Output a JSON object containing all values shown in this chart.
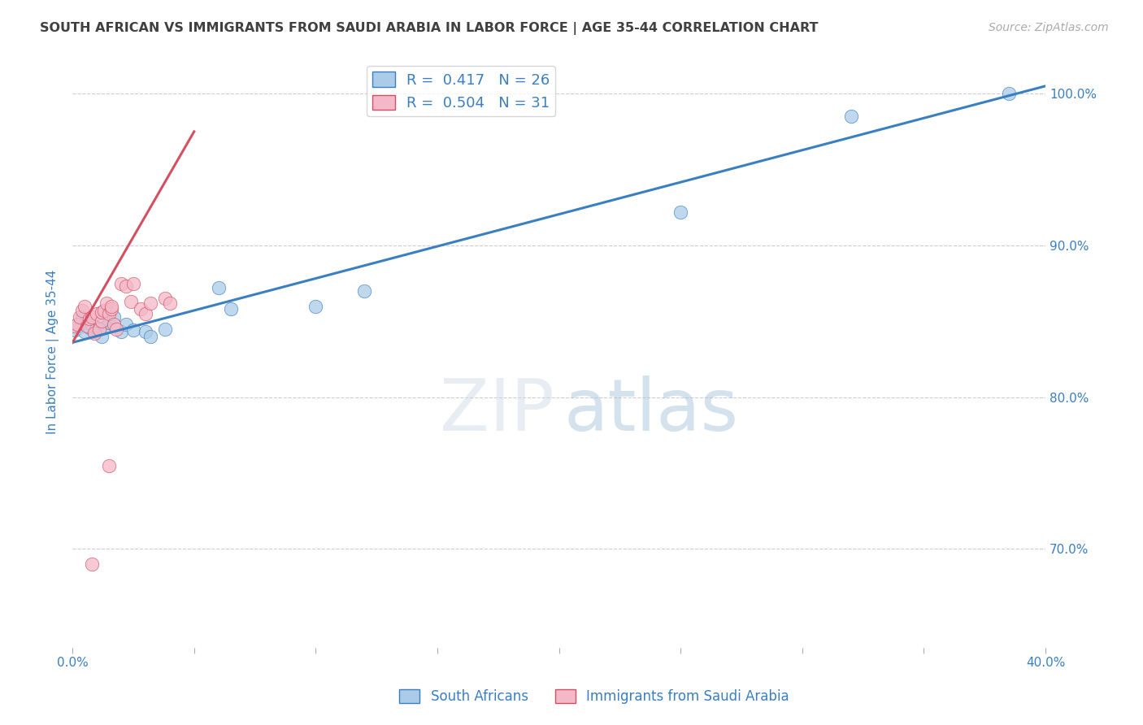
{
  "title": "SOUTH AFRICAN VS IMMIGRANTS FROM SAUDI ARABIA IN LABOR FORCE | AGE 35-44 CORRELATION CHART",
  "source": "Source: ZipAtlas.com",
  "ylabel": "In Labor Force | Age 35-44",
  "xlim": [
    0.0,
    0.4
  ],
  "ylim": [
    0.635,
    1.025
  ],
  "yticks": [
    0.7,
    0.8,
    0.9,
    1.0
  ],
  "xticks": [
    0.0,
    0.05,
    0.1,
    0.15,
    0.2,
    0.25,
    0.3,
    0.35,
    0.4
  ],
  "blue_label": "South Africans",
  "pink_label": "Immigrants from Saudi Arabia",
  "blue_R": 0.417,
  "blue_N": 26,
  "pink_R": 0.504,
  "pink_N": 31,
  "blue_color": "#aacce8",
  "pink_color": "#f4b8c8",
  "blue_line_color": "#3a7fc1",
  "pink_line_color": "#d45060",
  "title_color": "#404040",
  "label_color": "#3a7fc1",
  "blue_line_x0": 0.0,
  "blue_line_y0": 0.836,
  "blue_line_x1": 0.4,
  "blue_line_y1": 1.005,
  "pink_line_x0": 0.0,
  "pink_line_y0": 0.836,
  "pink_line_x1": 0.05,
  "pink_line_y1": 0.975,
  "blue_x": [
    0.001,
    0.003,
    0.004,
    0.005,
    0.006,
    0.007,
    0.008,
    0.009,
    0.01,
    0.012,
    0.013,
    0.015,
    0.017,
    0.02,
    0.022,
    0.025,
    0.03,
    0.032,
    0.038,
    0.06,
    0.065,
    0.1,
    0.12,
    0.25,
    0.32,
    0.385
  ],
  "blue_y": [
    0.844,
    0.847,
    0.853,
    0.843,
    0.849,
    0.846,
    0.848,
    0.843,
    0.846,
    0.84,
    0.846,
    0.849,
    0.853,
    0.843,
    0.848,
    0.844,
    0.843,
    0.84,
    0.845,
    0.872,
    0.858,
    0.86,
    0.87,
    0.922,
    0.985,
    1.0
  ],
  "pink_x": [
    0.001,
    0.002,
    0.003,
    0.004,
    0.005,
    0.006,
    0.007,
    0.008,
    0.009,
    0.01,
    0.011,
    0.012,
    0.012,
    0.013,
    0.014,
    0.015,
    0.016,
    0.016,
    0.017,
    0.018,
    0.02,
    0.022,
    0.024,
    0.025,
    0.028,
    0.03,
    0.032,
    0.038,
    0.04,
    0.015,
    0.008
  ],
  "pink_y": [
    0.847,
    0.848,
    0.853,
    0.857,
    0.86,
    0.847,
    0.852,
    0.853,
    0.842,
    0.855,
    0.845,
    0.85,
    0.856,
    0.857,
    0.862,
    0.855,
    0.858,
    0.86,
    0.848,
    0.845,
    0.875,
    0.873,
    0.863,
    0.875,
    0.858,
    0.855,
    0.862,
    0.865,
    0.862,
    0.755,
    0.69
  ]
}
